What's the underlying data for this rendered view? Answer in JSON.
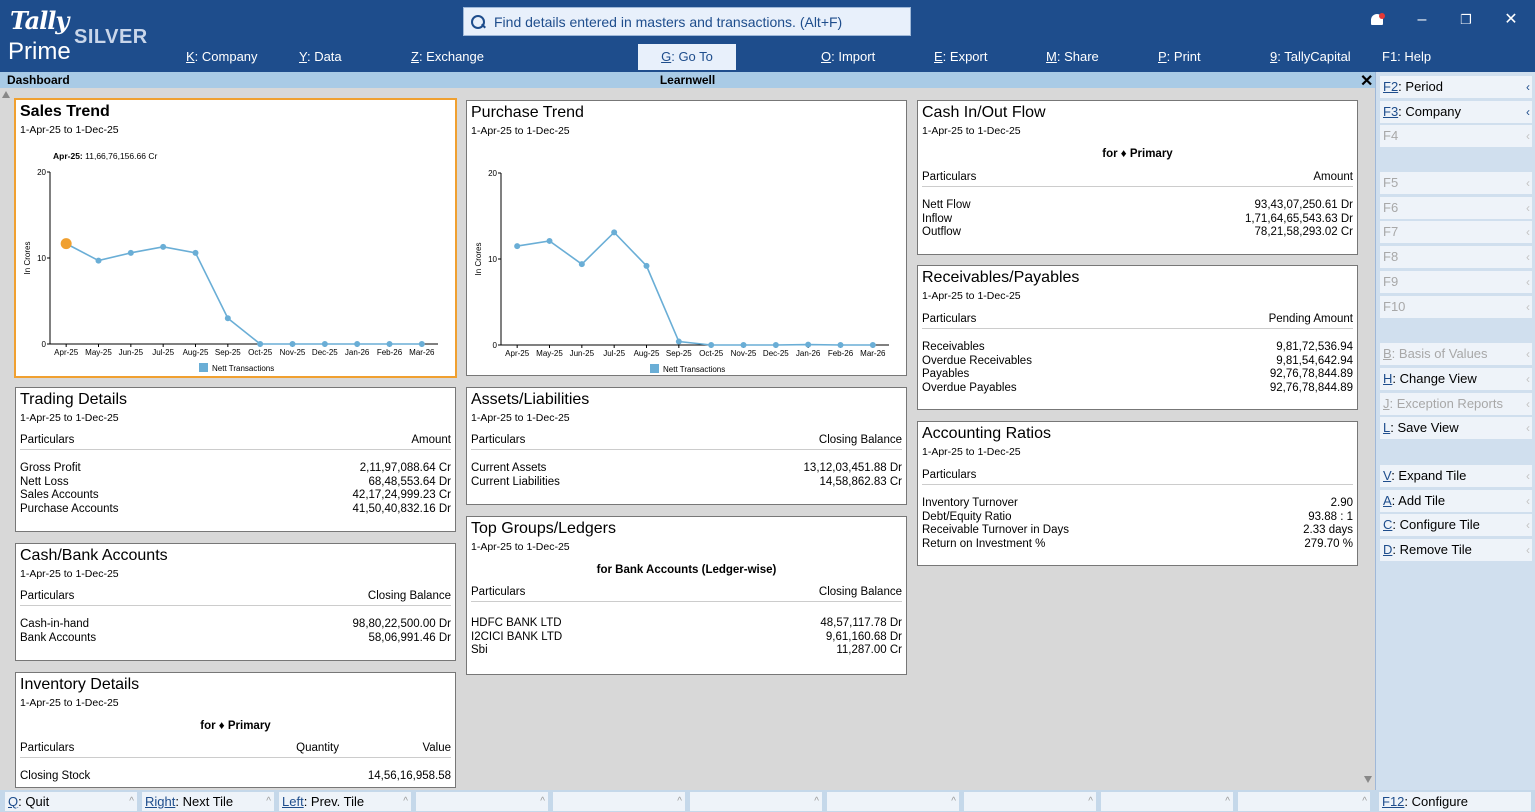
{
  "app": {
    "logo_top": "Tally",
    "logo_bottom": "Prime",
    "edition": "SILVER",
    "search_placeholder": "Find details entered in masters and transactions. (Alt+F)",
    "window_controls": {
      "minimize": "–",
      "restore": "❐",
      "close": "✕"
    }
  },
  "menu": [
    {
      "key": "K",
      "label": ": Company"
    },
    {
      "key": "Y",
      "label": ": Data"
    },
    {
      "key": "Z",
      "label": ": Exchange"
    },
    {
      "key": "G",
      "label": ": Go To"
    },
    {
      "key": "O",
      "label": ": Import"
    },
    {
      "key": "E",
      "label": ": Export"
    },
    {
      "key": "M",
      "label": ": Share"
    },
    {
      "key": "P",
      "label": ": Print"
    },
    {
      "key": "9",
      "label": ": TallyCapital"
    },
    {
      "key": "F1",
      "label": ": Help"
    }
  ],
  "titlebar": {
    "left": "Dashboard",
    "center": "Learnwell",
    "close": "✕"
  },
  "period": "1-Apr-25 to 1-Dec-25",
  "sales_trend": {
    "title": "Sales Trend",
    "tooltip_label": "Apr-25:",
    "tooltip_value": "11,66,76,156.66 Cr"
  },
  "purchase_trend": {
    "title": "Purchase Trend"
  },
  "chart_data": [
    {
      "type": "line",
      "title": "Sales Trend",
      "ylabel": "In Crores",
      "ylim": [
        0,
        20
      ],
      "yticks": [
        "0",
        "10",
        "20"
      ],
      "categories": [
        "Apr-25",
        "May-25",
        "Jun-25",
        "Jul-25",
        "Aug-25",
        "Sep-25",
        "Oct-25",
        "Nov-25",
        "Dec-25",
        "Jan-26",
        "Feb-26",
        "Mar-26"
      ],
      "series": [
        {
          "name": "Nett Transactions",
          "values": [
            11.67,
            9.7,
            10.6,
            11.3,
            10.6,
            3.0,
            0,
            0,
            0,
            0,
            0,
            0
          ]
        }
      ],
      "highlight_index": 0,
      "line_color": "#6aaed6",
      "highlight_color": "#f0a030",
      "legend": "bottom-center",
      "grid": false
    },
    {
      "type": "line",
      "title": "Purchase Trend",
      "ylabel": "In Crores",
      "ylim": [
        0,
        20
      ],
      "yticks": [
        "0",
        "10",
        "20"
      ],
      "categories": [
        "Apr-25",
        "May-25",
        "Jun-25",
        "Jul-25",
        "Aug-25",
        "Sep-25",
        "Oct-25",
        "Nov-25",
        "Dec-25",
        "Jan-26",
        "Feb-26",
        "Mar-26"
      ],
      "series": [
        {
          "name": "Nett Transactions",
          "values": [
            11.5,
            12.1,
            9.4,
            13.1,
            9.2,
            0.4,
            0,
            0,
            0,
            0.05,
            0,
            0
          ]
        }
      ],
      "line_color": "#6aaed6",
      "legend": "bottom-center",
      "grid": false
    }
  ],
  "trading": {
    "title": "Trading Details",
    "col_l": "Particulars",
    "col_r": "Amount",
    "rows": [
      {
        "l": "Gross Profit",
        "r": "2,11,97,088.64 Cr"
      },
      {
        "l": "Nett Loss",
        "r": "68,48,553.64 Dr"
      },
      {
        "l": "Sales Accounts",
        "r": "42,17,24,999.23 Cr"
      },
      {
        "l": "Purchase Accounts",
        "r": "41,50,40,832.16 Dr"
      }
    ]
  },
  "cashbank": {
    "title": "Cash/Bank Accounts",
    "col_l": "Particulars",
    "col_r": "Closing Balance",
    "rows": [
      {
        "l": "Cash-in-hand",
        "r": "98,80,22,500.00 Dr"
      },
      {
        "l": "Bank Accounts",
        "r": "58,06,991.46 Dr"
      }
    ]
  },
  "inventory": {
    "title": "Inventory Details",
    "subhead": "for ♦ Primary",
    "col_l": "Particulars",
    "col_m": "Quantity",
    "col_r": "Value",
    "rows": [
      {
        "l": "Closing Stock",
        "r": "14,56,16,958.58"
      }
    ]
  },
  "assets": {
    "title": "Assets/Liabilities",
    "col_l": "Particulars",
    "col_r": "Closing Balance",
    "rows": [
      {
        "l": "Current Assets",
        "r": "13,12,03,451.88 Dr"
      },
      {
        "l": "Current Liabilities",
        "r": "14,58,862.83 Cr"
      }
    ]
  },
  "topgroups": {
    "title": "Top Groups/Ledgers",
    "subhead": "for Bank Accounts (Ledger-wise)",
    "col_l": "Particulars",
    "col_r": "Closing Balance",
    "rows": [
      {
        "l": "HDFC BANK LTD",
        "r": "48,57,117.78 Dr"
      },
      {
        "l": "I2CICI BANK LTD",
        "r": "9,61,160.68 Dr"
      },
      {
        "l": "Sbi",
        "r": "11,287.00 Cr"
      }
    ]
  },
  "cashflow": {
    "title": "Cash In/Out Flow",
    "subhead": "for ♦ Primary",
    "col_l": "Particulars",
    "col_r": "Amount",
    "rows": [
      {
        "l": "Nett Flow",
        "r": "93,43,07,250.61 Dr"
      },
      {
        "l": "Inflow",
        "r": "1,71,64,65,543.63 Dr"
      },
      {
        "l": "Outflow",
        "r": "78,21,58,293.02 Cr"
      }
    ]
  },
  "recpay": {
    "title": "Receivables/Payables",
    "col_l": "Particulars",
    "col_r": "Pending Amount",
    "rows": [
      {
        "l": "Receivables",
        "r": "9,81,72,536.94"
      },
      {
        "l": "Overdue Receivables",
        "r": "9,81,54,642.94"
      },
      {
        "l": "Payables",
        "r": "92,76,78,844.89"
      },
      {
        "l": "Overdue Payables",
        "r": "92,76,78,844.89"
      }
    ]
  },
  "ratios": {
    "title": "Accounting Ratios",
    "col_l": "Particulars",
    "rows": [
      {
        "l": "Inventory Turnover",
        "r": "2.90"
      },
      {
        "l": "Debt/Equity Ratio",
        "r": "93.88 : 1"
      },
      {
        "l": "Receivable Turnover in Days",
        "r": "2.33 days"
      },
      {
        "l": "Return on Investment %",
        "r": "279.70 %"
      }
    ]
  },
  "right_panel": [
    {
      "key": "F2",
      "label": ": Period",
      "enabled": true
    },
    {
      "key": "F3",
      "label": ": Company",
      "enabled": true
    },
    {
      "key": "F4",
      "label": "",
      "enabled": false
    },
    {
      "key": "F5",
      "label": "",
      "enabled": false
    },
    {
      "key": "F6",
      "label": "",
      "enabled": false
    },
    {
      "key": "F7",
      "label": "",
      "enabled": false
    },
    {
      "key": "F8",
      "label": "",
      "enabled": false
    },
    {
      "key": "F9",
      "label": "",
      "enabled": false
    },
    {
      "key": "F10",
      "label": "",
      "enabled": false
    },
    {
      "key": "B",
      "label": ": Basis of Values",
      "enabled": false
    },
    {
      "key": "H",
      "label": ": Change View",
      "enabled": true
    },
    {
      "key": "J",
      "label": ": Exception Reports",
      "enabled": false
    },
    {
      "key": "L",
      "label": ": Save View",
      "enabled": true
    },
    {
      "key": "V",
      "label": ": Expand Tile",
      "enabled": true
    },
    {
      "key": "A",
      "label": ": Add Tile",
      "enabled": true
    },
    {
      "key": "C",
      "label": ": Configure Tile",
      "enabled": true
    },
    {
      "key": "D",
      "label": ": Remove Tile",
      "enabled": true
    }
  ],
  "bottom_bar": [
    {
      "key": "Q",
      "label": ": Quit"
    },
    {
      "key": "Right",
      "label": ": Next Tile"
    },
    {
      "key": "Left",
      "label": ": Prev. Tile"
    }
  ],
  "bottom_right": {
    "key": "F12",
    "label": ": Configure"
  }
}
